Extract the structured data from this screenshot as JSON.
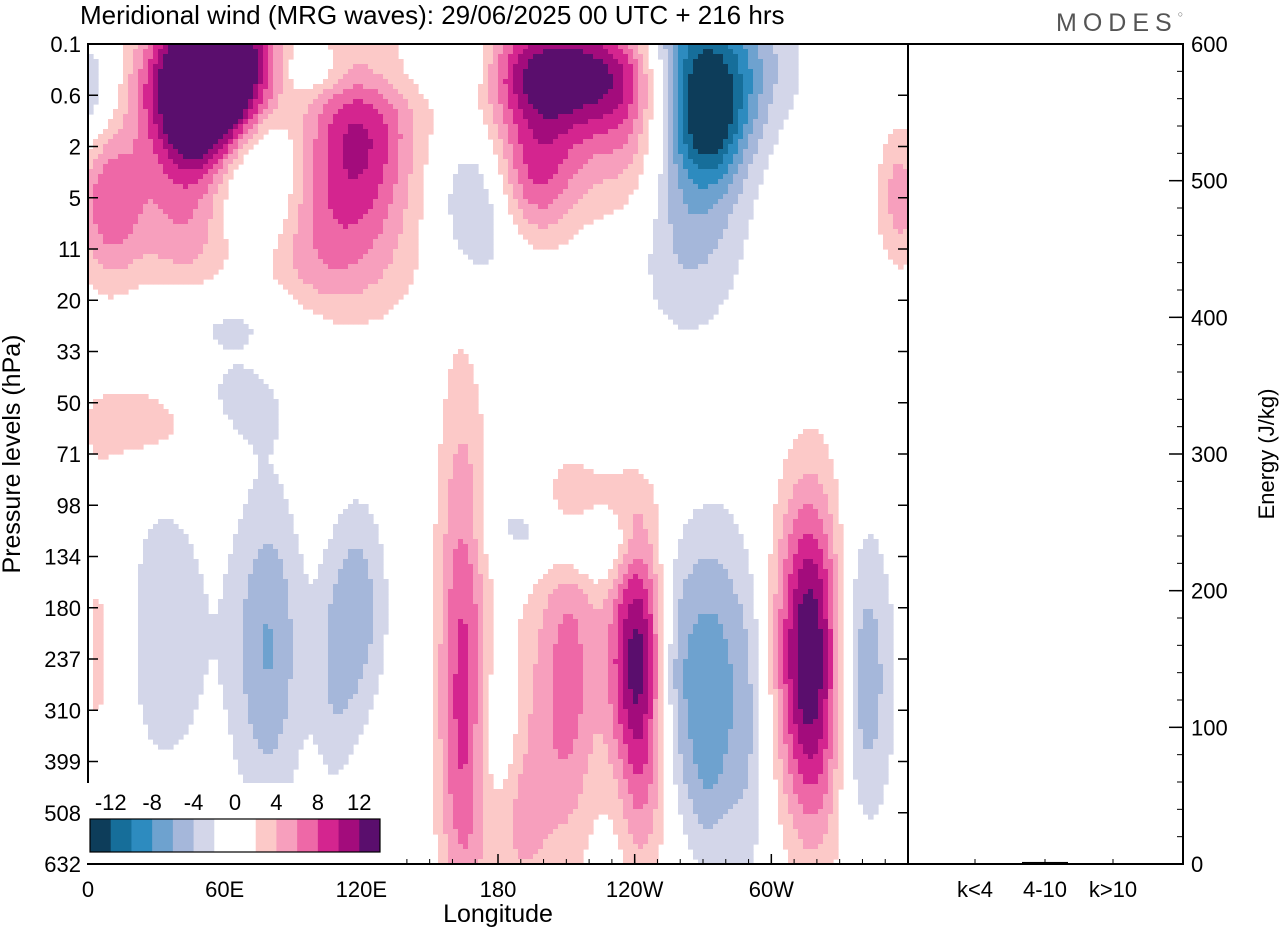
{
  "header": {
    "title": "Meridional wind (MRG waves):  29/06/2025  00 UTC  + 216 hrs",
    "logo": "MODES"
  },
  "chart_data": [
    {
      "type": "heatmap",
      "xlabel": "Longitude",
      "ylabel": "Pressure levels (hPa)",
      "x_ticks": [
        "0",
        "60E",
        "120E",
        "180",
        "120W",
        "60W"
      ],
      "y_ticks": [
        "0.1",
        "0.6",
        "2",
        "5",
        "11",
        "20",
        "33",
        "50",
        "71",
        "98",
        "134",
        "180",
        "237",
        "310",
        "399",
        "508",
        "632"
      ],
      "colorbar": {
        "labels": [
          "-12",
          "-8",
          "-4",
          "0",
          "4",
          "8",
          "12"
        ],
        "colors": [
          "#0d3d5a",
          "#166e9a",
          "#2d8bbf",
          "#6ea2cf",
          "#a5b7da",
          "#d3d6e9",
          "#ffffff",
          "#ffffff",
          "#fcc9c8",
          "#f79fbd",
          "#ee68a7",
          "#d4258f",
          "#a30c7c",
          "#5a0e6d"
        ]
      },
      "features": [
        {
          "lon": 0.15,
          "lev": 0.5,
          "v": 6,
          "w": 0.04,
          "h": 1.2
        },
        {
          "lon": 0.0,
          "lev": 1.0,
          "v": -5,
          "w": 0.03,
          "h": 0.8
        },
        {
          "lon": 0.13,
          "lev": 3.3,
          "v": 7,
          "w": 0.05,
          "h": 1.1
        },
        {
          "lon": 0.14,
          "lev": 1.1,
          "v": 6,
          "w": 0.05,
          "h": 1.0
        },
        {
          "lon": 0.155,
          "lev": 0.6,
          "v": 12,
          "w": 0.06,
          "h": 0.9
        },
        {
          "lon": 0.18,
          "lev": 0.8,
          "v": 7,
          "w": 0.04,
          "h": 1.3
        },
        {
          "lon": 0.13,
          "lev": 1.7,
          "v": 5,
          "w": 0.035,
          "h": 0.8
        },
        {
          "lon": 0.195,
          "lev": 1.4,
          "v": -8,
          "w": 0.05,
          "h": 1.2
        },
        {
          "lon": 0.19,
          "lev": 2.9,
          "v": -7,
          "w": 0.05,
          "h": 1.3
        },
        {
          "lon": 0.3,
          "lev": 2.5,
          "v": 7,
          "w": 0.07,
          "h": 1.6
        },
        {
          "lon": 0.335,
          "lev": 1.5,
          "v": 5,
          "w": 0.04,
          "h": 1.2
        },
        {
          "lon": 0.26,
          "lev": 4.4,
          "v": 3,
          "w": 0.09,
          "h": 1.1
        },
        {
          "lon": 0.18,
          "lev": 5.4,
          "v": -3,
          "w": 0.08,
          "h": 0.5
        },
        {
          "lon": 0.37,
          "lev": 0.6,
          "v": -4,
          "w": 0.04,
          "h": 0.5
        },
        {
          "lon": 0.4,
          "lev": 0.6,
          "v": 4,
          "w": 0.04,
          "h": 0.6
        },
        {
          "lon": 0.27,
          "lev": 0.5,
          "v": -4,
          "w": 0.03,
          "h": 0.4
        },
        {
          "lon": 0.56,
          "lev": 1.2,
          "v": 6,
          "w": 0.05,
          "h": 1.2
        },
        {
          "lon": 0.52,
          "lev": 0.5,
          "v": 3,
          "w": 0.05,
          "h": 0.6
        },
        {
          "lon": 0.475,
          "lev": 3.1,
          "v": -6,
          "w": 0.035,
          "h": 1.1
        },
        {
          "lon": 0.54,
          "lev": 2.7,
          "v": 6,
          "w": 0.04,
          "h": 0.9
        },
        {
          "lon": 0.63,
          "lev": 0.5,
          "v": 11,
          "w": 0.08,
          "h": 0.8
        },
        {
          "lon": 0.735,
          "lev": 0.4,
          "v": -12,
          "w": 0.07,
          "h": 1.0
        },
        {
          "lon": 0.67,
          "lev": 1.5,
          "v": 8,
          "w": 0.04,
          "h": 1.4
        },
        {
          "lon": 0.73,
          "lev": 2.4,
          "v": -7,
          "w": 0.05,
          "h": 2.0
        },
        {
          "lon": 0.76,
          "lev": 1.6,
          "v": -6,
          "w": 0.03,
          "h": 0.8
        },
        {
          "lon": 0.45,
          "lev": 0.5,
          "v": -5,
          "w": 0.04,
          "h": 0.5
        },
        {
          "lon": 0.025,
          "lev": 3.0,
          "v": 7,
          "w": 0.03,
          "h": 1.2
        },
        {
          "lon": 0.99,
          "lev": 3.0,
          "v": 5,
          "w": 0.02,
          "h": 1.0
        },
        {
          "lon": 0.075,
          "lev": 7.4,
          "v": 4,
          "w": 0.06,
          "h": 0.6
        },
        {
          "lon": 0.18,
          "lev": 7.0,
          "v": -3,
          "w": 0.05,
          "h": 0.7
        },
        {
          "lon": 0.54,
          "lev": 9.4,
          "v": -4,
          "w": 0.04,
          "h": 0.6
        },
        {
          "lon": 0.6,
          "lev": 9.0,
          "v": 3,
          "w": 0.05,
          "h": 0.5
        },
        {
          "lon": 0.015,
          "lev": 11.8,
          "v": 3,
          "w": 0.02,
          "h": 2.5
        },
        {
          "lon": 0.095,
          "lev": 11.5,
          "v": -3,
          "w": 0.05,
          "h": 2.5
        },
        {
          "lon": 0.22,
          "lev": 11.8,
          "v": -6,
          "w": 0.03,
          "h": 2.2
        },
        {
          "lon": 0.33,
          "lev": 11.0,
          "v": -5,
          "w": 0.025,
          "h": 1.5
        },
        {
          "lon": 0.3,
          "lev": 12.5,
          "v": -3,
          "w": 0.02,
          "h": 1.6
        },
        {
          "lon": 0.456,
          "lev": 11.5,
          "v": 7,
          "w": 0.022,
          "h": 3.5
        },
        {
          "lon": 0.46,
          "lev": 14.4,
          "v": 3,
          "w": 0.022,
          "h": 2.2
        },
        {
          "lon": 0.5,
          "lev": 13.5,
          "v": -3,
          "w": 0.02,
          "h": 1.0
        },
        {
          "lon": 0.59,
          "lev": 12.3,
          "v": 6,
          "w": 0.025,
          "h": 2.4
        },
        {
          "lon": 0.545,
          "lev": 13.2,
          "v": 3,
          "w": 0.03,
          "h": 2.4
        },
        {
          "lon": 0.525,
          "lev": 15.2,
          "v": 3,
          "w": 0.025,
          "h": 1.3
        },
        {
          "lon": 0.67,
          "lev": 12.0,
          "v": 13,
          "w": 0.025,
          "h": 1.8
        },
        {
          "lon": 0.68,
          "lev": 15.0,
          "v": 3,
          "w": 0.02,
          "h": 1.3
        },
        {
          "lon": 0.76,
          "lev": 12.0,
          "v": -6,
          "w": 0.025,
          "h": 2.0
        },
        {
          "lon": 0.715,
          "lev": 12.2,
          "v": -5,
          "w": 0.02,
          "h": 1.8
        },
        {
          "lon": 0.805,
          "lev": 13.2,
          "v": -4,
          "w": 0.02,
          "h": 2.4
        },
        {
          "lon": 0.88,
          "lev": 11.8,
          "v": 13,
          "w": 0.03,
          "h": 2.2
        },
        {
          "lon": 0.9,
          "lev": 13.5,
          "v": 3,
          "w": 0.03,
          "h": 2.4
        },
        {
          "lon": 0.94,
          "lev": 12.4,
          "v": -7,
          "w": 0.028,
          "h": 2.1
        },
        {
          "lon": 0.755,
          "lev": 14.4,
          "v": -3,
          "w": 0.02,
          "h": 1.2
        },
        {
          "lon": 0.62,
          "lev": 9.7,
          "v": -5,
          "w": 0.03,
          "h": 0.5
        }
      ]
    },
    {
      "type": "bar",
      "ylabel": "Energy (J/kg)",
      "categories": [
        "k<4",
        "4-10",
        "k>10"
      ],
      "values": [
        0.5,
        1.5,
        0.3
      ],
      "ylim": [
        0,
        600
      ],
      "y_ticks": [
        "0",
        "100",
        "200",
        "300",
        "400",
        "500",
        "600"
      ]
    }
  ]
}
